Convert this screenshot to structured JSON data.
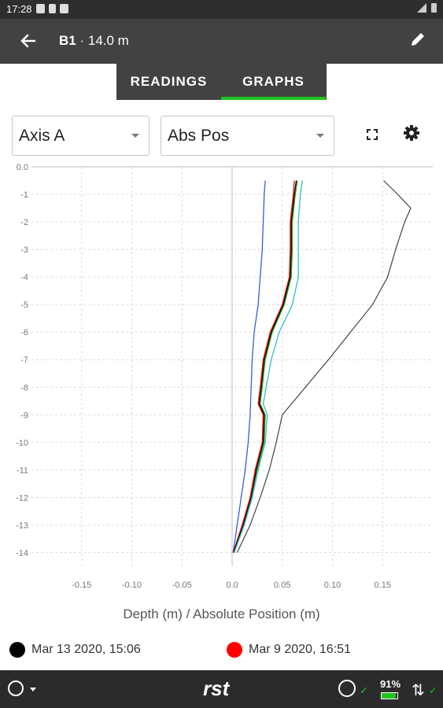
{
  "status_bar": {
    "time": "17:28"
  },
  "app_bar": {
    "name": "B1",
    "separator": "·",
    "length": "14.0 m",
    "back_icon": "arrow-left-icon",
    "edit_icon": "pencil-icon"
  },
  "tabs": [
    {
      "label": "READINGS",
      "active": false
    },
    {
      "label": "GRAPHS",
      "active": true
    }
  ],
  "controls": {
    "axis_select": "Axis A",
    "mode_select": "Abs Pos",
    "fullscreen_icon": "fullscreen-icon",
    "settings_icon": "gear-icon"
  },
  "chart_title": "Depth (m) / Absolute Position (m)",
  "legend": [
    {
      "label": "Mar 13 2020, 15:06",
      "color": "#000000"
    },
    {
      "label": "Mar 9 2020, 16:51",
      "color": "#ff0000"
    }
  ],
  "bottom_bar": {
    "logo": "rst",
    "battery": "91%",
    "battery_level": 0.91
  },
  "chart_data": {
    "type": "line",
    "xlabel": "Absolute Position (m)",
    "ylabel": "Depth (m)",
    "xlim": [
      -0.2,
      0.2
    ],
    "ylim": [
      -14.5,
      0
    ],
    "x_ticks": [
      -0.15,
      -0.1,
      -0.05,
      0.0,
      0.05,
      0.1,
      0.15
    ],
    "x_tick_labels": [
      "-0.15",
      "-0.10",
      "-0.05",
      "0.0",
      "0.05",
      "0.10",
      "0.15"
    ],
    "y_ticks": [
      0,
      -1,
      -2,
      -3,
      -4,
      -5,
      -6,
      -7,
      -8,
      -9,
      -10,
      -11,
      -12,
      -13,
      -14
    ],
    "y_tick_labels": [
      "0.0",
      "-1",
      "-2",
      "-3",
      "-4",
      "-5",
      "-6",
      "-7",
      "-8",
      "-9",
      "-10",
      "-11",
      "-12",
      "-13",
      "-14"
    ],
    "grid": true,
    "series": [
      {
        "color": "#444444",
        "points": [
          [
            0.151,
            -0.5
          ],
          [
            0.165,
            -1.0
          ],
          [
            0.178,
            -1.5
          ],
          [
            0.172,
            -2.0
          ],
          [
            0.163,
            -3.0
          ],
          [
            0.155,
            -4.0
          ],
          [
            0.14,
            -5.0
          ],
          [
            0.118,
            -6.0
          ],
          [
            0.096,
            -7.0
          ],
          [
            0.073,
            -8.0
          ],
          [
            0.05,
            -9.0
          ],
          [
            0.044,
            -10.0
          ],
          [
            0.037,
            -11.0
          ],
          [
            0.028,
            -12.0
          ],
          [
            0.018,
            -13.0
          ],
          [
            0.005,
            -14.0
          ]
        ]
      },
      {
        "color": "#3b5bdb",
        "points": [
          [
            0.033,
            -0.5
          ],
          [
            0.032,
            -1.0
          ],
          [
            0.031,
            -2.0
          ],
          [
            0.03,
            -3.0
          ],
          [
            0.028,
            -4.0
          ],
          [
            0.026,
            -5.0
          ],
          [
            0.022,
            -6.0
          ],
          [
            0.02,
            -7.0
          ],
          [
            0.019,
            -8.0
          ],
          [
            0.018,
            -9.0
          ],
          [
            0.016,
            -10.0
          ],
          [
            0.013,
            -11.0
          ],
          [
            0.009,
            -12.0
          ],
          [
            0.005,
            -13.0
          ],
          [
            0.001,
            -14.0
          ]
        ]
      },
      {
        "color": "#20b020",
        "points": [
          [
            0.065,
            -0.5
          ],
          [
            0.063,
            -1.0
          ],
          [
            0.06,
            -2.0
          ],
          [
            0.06,
            -3.0
          ],
          [
            0.059,
            -4.0
          ],
          [
            0.052,
            -5.0
          ],
          [
            0.04,
            -6.0
          ],
          [
            0.033,
            -7.0
          ],
          [
            0.03,
            -8.0
          ],
          [
            0.028,
            -8.6
          ],
          [
            0.033,
            -9.0
          ],
          [
            0.032,
            -10.0
          ],
          [
            0.025,
            -11.0
          ],
          [
            0.02,
            -12.0
          ],
          [
            0.012,
            -13.0
          ],
          [
            0.002,
            -14.0
          ]
        ]
      },
      {
        "color": "#ff0000",
        "points": [
          [
            0.062,
            -0.5
          ],
          [
            0.061,
            -1.0
          ],
          [
            0.058,
            -2.0
          ],
          [
            0.058,
            -3.0
          ],
          [
            0.057,
            -4.0
          ],
          [
            0.05,
            -5.0
          ],
          [
            0.038,
            -6.0
          ],
          [
            0.031,
            -7.0
          ],
          [
            0.028,
            -8.0
          ],
          [
            0.026,
            -8.6
          ],
          [
            0.031,
            -9.0
          ],
          [
            0.03,
            -10.0
          ],
          [
            0.023,
            -11.0
          ],
          [
            0.018,
            -12.0
          ],
          [
            0.01,
            -13.0
          ],
          [
            0.001,
            -14.0
          ]
        ]
      },
      {
        "color": "#000000",
        "points": [
          [
            0.064,
            -0.5
          ],
          [
            0.062,
            -1.0
          ],
          [
            0.059,
            -2.0
          ],
          [
            0.059,
            -3.0
          ],
          [
            0.058,
            -4.0
          ],
          [
            0.051,
            -5.0
          ],
          [
            0.039,
            -6.0
          ],
          [
            0.032,
            -7.0
          ],
          [
            0.029,
            -8.0
          ],
          [
            0.027,
            -8.6
          ],
          [
            0.032,
            -9.0
          ],
          [
            0.031,
            -10.0
          ],
          [
            0.024,
            -11.0
          ],
          [
            0.019,
            -12.0
          ],
          [
            0.011,
            -13.0
          ],
          [
            0.0015,
            -14.0
          ]
        ]
      },
      {
        "color": "#30c0c0",
        "points": [
          [
            0.07,
            -0.5
          ],
          [
            0.068,
            -1.0
          ],
          [
            0.066,
            -2.0
          ],
          [
            0.066,
            -3.0
          ],
          [
            0.066,
            -4.0
          ],
          [
            0.06,
            -5.0
          ],
          [
            0.047,
            -6.0
          ],
          [
            0.039,
            -7.0
          ],
          [
            0.034,
            -8.0
          ],
          [
            0.031,
            -8.6
          ],
          [
            0.035,
            -9.0
          ],
          [
            0.033,
            -10.0
          ],
          [
            0.026,
            -11.0
          ],
          [
            0.02,
            -12.0
          ],
          [
            0.012,
            -13.0
          ],
          [
            0.002,
            -14.0
          ]
        ]
      }
    ]
  }
}
